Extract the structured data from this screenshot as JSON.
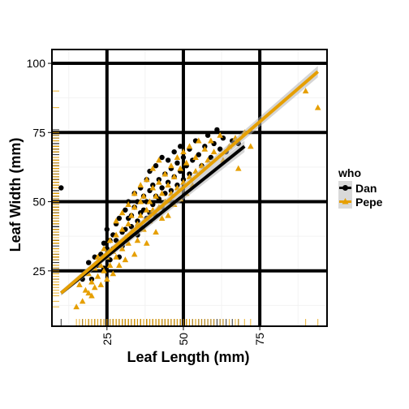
{
  "chart_data": {
    "type": "scatter",
    "title": "",
    "xlabel": "Leaf Length (mm)",
    "ylabel": "Leaf Width (mm)",
    "xlim": [
      7,
      97
    ],
    "ylim": [
      5,
      105
    ],
    "x_ticks": [
      25,
      50,
      75
    ],
    "y_ticks": [
      25,
      50,
      75,
      100
    ],
    "x_tick_labels": [
      "25",
      "50",
      "75"
    ],
    "y_tick_labels": [
      "25",
      "50",
      "75",
      "100"
    ],
    "grid": true,
    "rug": true,
    "legend": {
      "title": "who",
      "position": "right",
      "entries": [
        "Dan",
        "Pepe"
      ]
    },
    "series": [
      {
        "name": "Dan",
        "color": "#000000",
        "marker": "circle",
        "fit_line": {
          "x": [
            10,
            70
          ],
          "y": [
            17,
            70
          ]
        },
        "points": [
          [
            10,
            55
          ],
          [
            17,
            22
          ],
          [
            19,
            28
          ],
          [
            20,
            22
          ],
          [
            21,
            30
          ],
          [
            22,
            27
          ],
          [
            23,
            31
          ],
          [
            24,
            26
          ],
          [
            24,
            35
          ],
          [
            25,
            33
          ],
          [
            25,
            40
          ],
          [
            26,
            29
          ],
          [
            26,
            36
          ],
          [
            27,
            38
          ],
          [
            27,
            33
          ],
          [
            28,
            42
          ],
          [
            28,
            36
          ],
          [
            29,
            30
          ],
          [
            29,
            44
          ],
          [
            30,
            39
          ],
          [
            30,
            34
          ],
          [
            31,
            47
          ],
          [
            31,
            40
          ],
          [
            31,
            36
          ],
          [
            32,
            44
          ],
          [
            32,
            50
          ],
          [
            33,
            38
          ],
          [
            33,
            45
          ],
          [
            33,
            41
          ],
          [
            34,
            48
          ],
          [
            34,
            53
          ],
          [
            35,
            43
          ],
          [
            35,
            38
          ],
          [
            35,
            50
          ],
          [
            36,
            46
          ],
          [
            36,
            55
          ],
          [
            36,
            41
          ],
          [
            37,
            52
          ],
          [
            37,
            47
          ],
          [
            38,
            44
          ],
          [
            38,
            58
          ],
          [
            38,
            50
          ],
          [
            39,
            54
          ],
          [
            39,
            46
          ],
          [
            39,
            61
          ],
          [
            40,
            49
          ],
          [
            40,
            56
          ],
          [
            41,
            52
          ],
          [
            41,
            63
          ],
          [
            41,
            45
          ],
          [
            42,
            58
          ],
          [
            42,
            51
          ],
          [
            43,
            55
          ],
          [
            43,
            66
          ],
          [
            43,
            48
          ],
          [
            44,
            60
          ],
          [
            44,
            53
          ],
          [
            45,
            57
          ],
          [
            45,
            65
          ],
          [
            46,
            62
          ],
          [
            46,
            54
          ],
          [
            47,
            68
          ],
          [
            47,
            59
          ],
          [
            48,
            64
          ],
          [
            48,
            56
          ],
          [
            49,
            61
          ],
          [
            49,
            70
          ],
          [
            50,
            58
          ],
          [
            50,
            66
          ],
          [
            51,
            63
          ],
          [
            52,
            69
          ],
          [
            52,
            60
          ],
          [
            53,
            65
          ],
          [
            54,
            72
          ],
          [
            55,
            67
          ],
          [
            56,
            63
          ],
          [
            57,
            70
          ],
          [
            58,
            74
          ],
          [
            59,
            66
          ],
          [
            60,
            71
          ],
          [
            61,
            76
          ],
          [
            62,
            69
          ],
          [
            63,
            73
          ],
          [
            64,
            68
          ],
          [
            66,
            72
          ],
          [
            68,
            71
          ]
        ]
      },
      {
        "name": "Pepe",
        "color": "#E69F00",
        "marker": "triangle",
        "fit_line": {
          "x": [
            10,
            94
          ],
          "y": [
            17,
            97
          ]
        },
        "points": [
          [
            15,
            12
          ],
          [
            16,
            20
          ],
          [
            17,
            14
          ],
          [
            18,
            18
          ],
          [
            19,
            24
          ],
          [
            19,
            17
          ],
          [
            20,
            21
          ],
          [
            20,
            16
          ],
          [
            21,
            26
          ],
          [
            21,
            19
          ],
          [
            22,
            23
          ],
          [
            22,
            30
          ],
          [
            23,
            20
          ],
          [
            23,
            27
          ],
          [
            24,
            25
          ],
          [
            24,
            33
          ],
          [
            25,
            22
          ],
          [
            25,
            30
          ],
          [
            26,
            36
          ],
          [
            26,
            27
          ],
          [
            27,
            32
          ],
          [
            27,
            24
          ],
          [
            28,
            38
          ],
          [
            28,
            30
          ],
          [
            28,
            43
          ],
          [
            29,
            35
          ],
          [
            29,
            27
          ],
          [
            30,
            40
          ],
          [
            30,
            33
          ],
          [
            30,
            46
          ],
          [
            31,
            37
          ],
          [
            31,
            29
          ],
          [
            32,
            42
          ],
          [
            32,
            49
          ],
          [
            32,
            35
          ],
          [
            33,
            45
          ],
          [
            33,
            39
          ],
          [
            34,
            31
          ],
          [
            34,
            48
          ],
          [
            34,
            53
          ],
          [
            35,
            42
          ],
          [
            35,
            36
          ],
          [
            36,
            50
          ],
          [
            36,
            45
          ],
          [
            36,
            56
          ],
          [
            37,
            40
          ],
          [
            37,
            52
          ],
          [
            38,
            47
          ],
          [
            38,
            58
          ],
          [
            38,
            35
          ],
          [
            39,
            50
          ],
          [
            39,
            43
          ],
          [
            40,
            55
          ],
          [
            40,
            47
          ],
          [
            40,
            62
          ],
          [
            41,
            52
          ],
          [
            41,
            39
          ],
          [
            42,
            57
          ],
          [
            42,
            48
          ],
          [
            42,
            65
          ],
          [
            43,
            53
          ],
          [
            43,
            44
          ],
          [
            44,
            60
          ],
          [
            44,
            50
          ],
          [
            45,
            56
          ],
          [
            45,
            45
          ],
          [
            46,
            63
          ],
          [
            46,
            53
          ],
          [
            47,
            59
          ],
          [
            47,
            49
          ],
          [
            48,
            66
          ],
          [
            48,
            55
          ],
          [
            49,
            62
          ],
          [
            49,
            51
          ],
          [
            50,
            68
          ],
          [
            50,
            57
          ],
          [
            51,
            53
          ],
          [
            51,
            64
          ],
          [
            52,
            59
          ],
          [
            52,
            70
          ],
          [
            53,
            56
          ],
          [
            54,
            66
          ],
          [
            54,
            61
          ],
          [
            55,
            72
          ],
          [
            56,
            63
          ],
          [
            57,
            69
          ],
          [
            58,
            65
          ],
          [
            59,
            72
          ],
          [
            60,
            68
          ],
          [
            62,
            74
          ],
          [
            63,
            65
          ],
          [
            65,
            70
          ],
          [
            67,
            73
          ],
          [
            68,
            62
          ],
          [
            70,
            75
          ],
          [
            72,
            70
          ],
          [
            90,
            90
          ],
          [
            94,
            84
          ]
        ]
      }
    ]
  }
}
